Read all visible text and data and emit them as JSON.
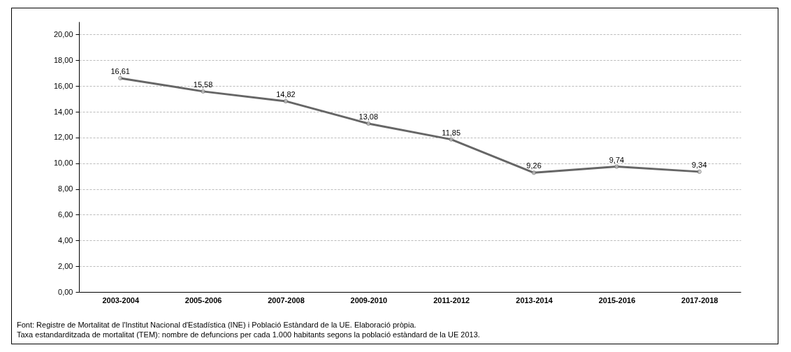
{
  "chart_data": {
    "type": "line",
    "categories": [
      "2003-2004",
      "2005-2006",
      "2007-2008",
      "2009-2010",
      "2011-2012",
      "2013-2014",
      "2015-2016",
      "2017-2018"
    ],
    "series": [
      {
        "color": "#666666",
        "values": [
          16.61,
          15.58,
          14.82,
          13.08,
          11.85,
          9.26,
          9.74,
          9.34
        ],
        "value_labels": [
          "16,61",
          "15,58",
          "14,82",
          "13,08",
          "11,85",
          "9,26",
          "9,74",
          "9,34"
        ]
      }
    ],
    "ylim": [
      0,
      21
    ],
    "yticks": [
      {
        "value": 0,
        "label": "0,00"
      },
      {
        "value": 2,
        "label": "2,00"
      },
      {
        "value": 4,
        "label": "4,00"
      },
      {
        "value": 6,
        "label": "6,00"
      },
      {
        "value": 8,
        "label": "8,00"
      },
      {
        "value": 10,
        "label": "10,00"
      },
      {
        "value": 12,
        "label": "12,00"
      },
      {
        "value": 14,
        "label": "14,00"
      },
      {
        "value": 16,
        "label": "16,00"
      },
      {
        "value": 18,
        "label": "18,00"
      },
      {
        "value": 20,
        "label": "20,00"
      }
    ],
    "grid": "y",
    "marker": "circle",
    "line_style": "solid",
    "legend": false,
    "annotations": [
      "Font: Registre de Mortalitat de l'Institut Nacional d'Estadística (INE) i Població Estàndard de la UE. Elaboració pròpia.",
      "Taxa estandarditzada de mortalitat (TEM): nombre de defuncions per cada 1.000 habitants segons la població estàndard de la UE 2013."
    ]
  }
}
